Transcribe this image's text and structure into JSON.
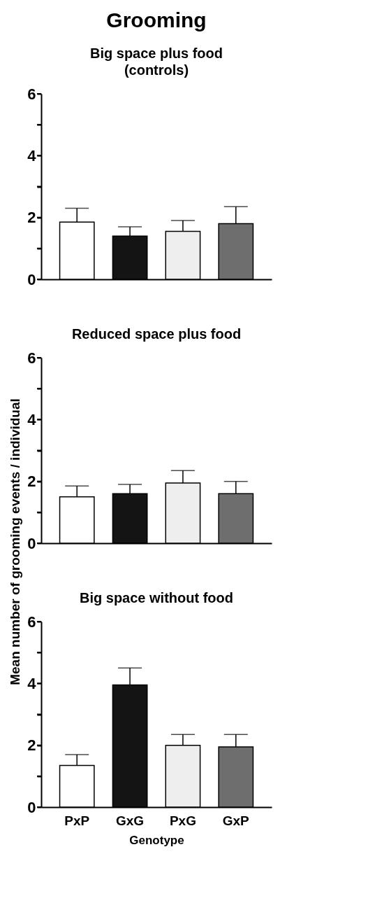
{
  "chart_data": [
    {
      "type": "bar",
      "title": "Grooming",
      "subtitle": "Big space plus food\n(controls)",
      "categories": [
        null,
        null,
        null,
        null
      ],
      "values": [
        1.85,
        1.4,
        1.55,
        1.8
      ],
      "errors": [
        [
          1.85,
          2.3
        ],
        [
          1.4,
          1.7
        ],
        [
          1.55,
          1.9
        ],
        [
          1.8,
          2.35
        ]
      ],
      "colors": [
        "#ffffff",
        "#141414",
        "#eeeeee",
        "#6e6e6e"
      ],
      "ylim": [
        0,
        6
      ],
      "yticks": [
        0,
        {
          "value": 1,
          "label": null
        },
        2,
        {
          "value": 3,
          "label": null
        },
        4,
        {
          "value": 5,
          "label": null
        },
        6
      ],
      "grid": false,
      "legend": false
    },
    {
      "type": "bar",
      "title": "Reduced space plus food",
      "ylabel": "Mean number of grooming events / individual",
      "categories": [
        null,
        null,
        null,
        null
      ],
      "values": [
        1.5,
        1.6,
        1.95,
        1.6
      ],
      "errors": [
        [
          1.5,
          1.85
        ],
        [
          1.6,
          1.9
        ],
        [
          1.95,
          2.35
        ],
        [
          1.6,
          2.0
        ]
      ],
      "colors": [
        "#ffffff",
        "#141414",
        "#eeeeee",
        "#6e6e6e"
      ],
      "ylim": [
        0,
        6
      ],
      "yticks": [
        0,
        {
          "value": 1,
          "label": null
        },
        2,
        {
          "value": 3,
          "label": null
        },
        4,
        {
          "value": 5,
          "label": null
        },
        6
      ],
      "grid": false,
      "legend": false
    },
    {
      "type": "bar",
      "title": "Big space without food",
      "xlabel": "Genotype",
      "categories": [
        "PxP",
        "GxG",
        "PxG",
        "GxP"
      ],
      "values": [
        1.35,
        3.95,
        2.0,
        1.95
      ],
      "errors": [
        [
          1.35,
          1.7
        ],
        [
          3.95,
          4.5
        ],
        [
          2.0,
          2.35
        ],
        [
          1.95,
          2.35
        ]
      ],
      "colors": [
        "#ffffff",
        "#141414",
        "#eeeeee",
        "#6e6e6e"
      ],
      "ylim": [
        0,
        6
      ],
      "yticks": [
        0,
        {
          "value": 1,
          "label": null
        },
        2,
        {
          "value": 3,
          "label": null
        },
        4,
        {
          "value": 5,
          "label": null
        },
        6
      ],
      "grid": false,
      "legend": false
    }
  ]
}
